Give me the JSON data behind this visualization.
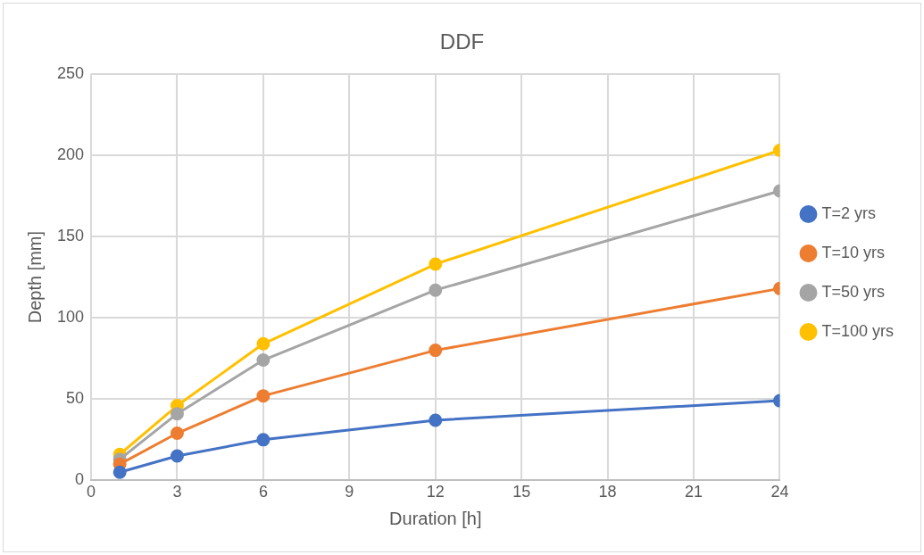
{
  "chart_data": {
    "type": "line",
    "title": "DDF",
    "xlabel": "Duration [h]",
    "ylabel": "Depth [mm]",
    "x": [
      1,
      3,
      6,
      12,
      24
    ],
    "xlim": [
      0,
      24
    ],
    "xticks": [
      0,
      3,
      6,
      9,
      12,
      15,
      18,
      21,
      24
    ],
    "ylim": [
      0,
      250
    ],
    "yticks": [
      0,
      50,
      100,
      150,
      200,
      250
    ],
    "grid": true,
    "legend": "right",
    "marker": "circle",
    "line_style": "solid",
    "series": [
      {
        "name": "T=2 yrs",
        "color": "#4472c4",
        "values": [
          5,
          15,
          25,
          37,
          49
        ]
      },
      {
        "name": "T=10 yrs",
        "color": "#ed7d31",
        "values": [
          10,
          29,
          52,
          80,
          118
        ]
      },
      {
        "name": "T=50 yrs",
        "color": "#a5a5a5",
        "values": [
          13,
          41,
          74,
          117,
          178
        ]
      },
      {
        "name": "T=100 yrs",
        "color": "#ffc000",
        "values": [
          16,
          46,
          84,
          133,
          203
        ]
      }
    ]
  }
}
